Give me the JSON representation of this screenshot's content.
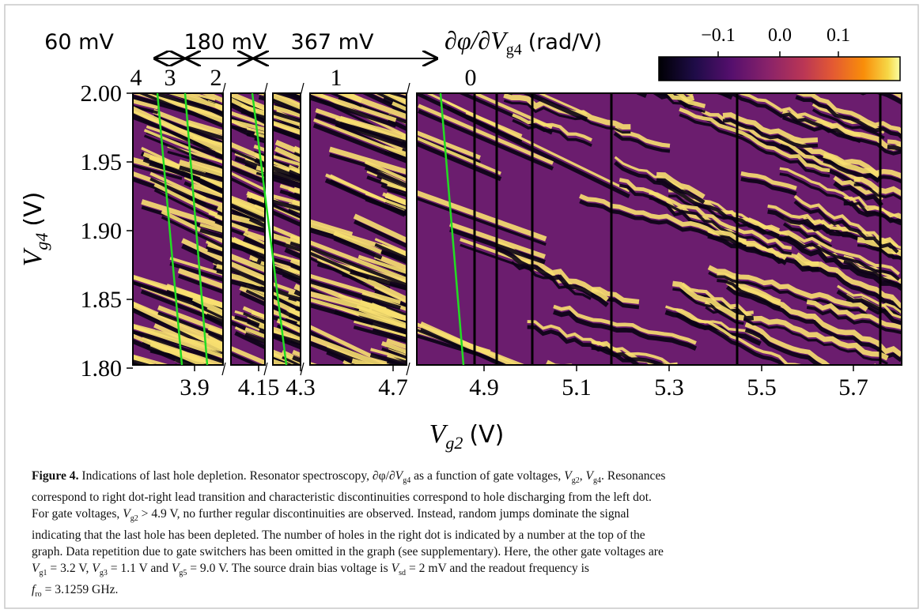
{
  "figure": {
    "annotations": {
      "spacing": [
        "60 mV",
        "180 mV",
        "367 mV"
      ],
      "colorbar_label": {
        "main": "∂φ/∂V",
        "sub": "g4",
        "unit": "(rad/V)"
      },
      "hole_numbers": [
        "4",
        "3",
        "2",
        "1",
        "0"
      ]
    },
    "colorbar_ticks": [
      "−0.1",
      "0.0",
      "0.1"
    ],
    "y_axis": {
      "label": {
        "main": "V",
        "sub": "g4",
        "unit": "(V)"
      },
      "ticks": [
        "2.00",
        "1.95",
        "1.90",
        "1.85",
        "1.80"
      ]
    },
    "x_axis": {
      "label": {
        "main": "V",
        "sub": "g2",
        "unit": "(V)"
      },
      "ticks": [
        "3.9",
        "4.15",
        "4.3",
        "4.7",
        "4.9",
        "5.1",
        "5.3",
        "5.5",
        "5.7"
      ]
    }
  },
  "caption": {
    "label": "Figure 4.",
    "lines": [
      [
        {
          "text": " Indications of last hole depletion. Resonator spectroscopy, ∂φ/∂"
        },
        {
          "var": "V"
        },
        {
          "sub": "g4"
        },
        {
          "text": " as a function of gate voltages, "
        },
        {
          "var": "V"
        },
        {
          "sub": "g2"
        },
        {
          "text": ", "
        },
        {
          "var": "V"
        },
        {
          "sub": "g4"
        },
        {
          "text": ". Resonances"
        }
      ],
      [
        {
          "text": "correspond to right dot-right lead transition and characteristic discontinuities correspond to hole discharging from the left dot."
        }
      ],
      [
        {
          "text": "For gate voltages, "
        },
        {
          "var": "V"
        },
        {
          "sub": "g2"
        },
        {
          "text": " > 4.9 V, no further regular discontinuities are observed. Instead, random jumps dominate the signal"
        }
      ],
      [
        {
          "text": "indicating that the last hole has been depleted. The number of holes in the right dot is indicated by a number at the top of the"
        }
      ],
      [
        {
          "text": "graph. Data repetition due to gate switchers has been omitted in the graph (see supplementary). Here, the other gate voltages are"
        }
      ],
      [
        {
          "var": "V"
        },
        {
          "sub": "g1"
        },
        {
          "text": " = 3.2 V, "
        },
        {
          "var": "V"
        },
        {
          "sub": "g3"
        },
        {
          "text": " = 1.1 V and "
        },
        {
          "var": "V"
        },
        {
          "sub": "g5"
        },
        {
          "text": " = 9.0 V. The source drain bias voltage is "
        },
        {
          "var": "V"
        },
        {
          "sub": "sd"
        },
        {
          "text": " = 2 mV and the readout frequency is"
        }
      ],
      [
        {
          "var": "f"
        },
        {
          "sub": "ro"
        },
        {
          "text": " = 3.1259 GHz."
        }
      ]
    ]
  }
}
